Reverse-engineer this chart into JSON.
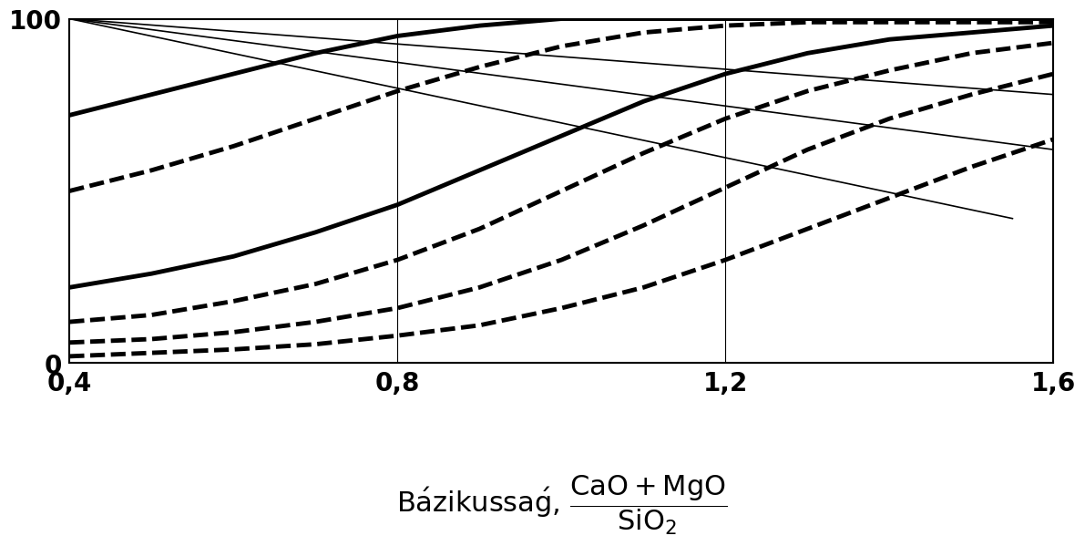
{
  "xlim": [
    0.4,
    1.6
  ],
  "ylim": [
    0,
    100
  ],
  "xticks": [
    0.4,
    0.8,
    1.2,
    1.6
  ],
  "xtick_labels": [
    "0,4",
    "0,8",
    "1,2",
    "1,6"
  ],
  "yticks": [
    0,
    100
  ],
  "ytick_labels": [
    "0",
    "100"
  ],
  "vlines": [
    0.8,
    1.2
  ],
  "background_color": "#ffffff",
  "thick_solid_curves": [
    {
      "x": [
        0.4,
        0.5,
        0.6,
        0.7,
        0.8,
        0.9,
        1.0,
        1.1,
        1.2,
        1.3,
        1.4,
        1.5,
        1.6
      ],
      "y": [
        72,
        78,
        84,
        90,
        95,
        98,
        100,
        100,
        100,
        100,
        100,
        100,
        100
      ],
      "lw": 3.5
    },
    {
      "x": [
        0.4,
        0.5,
        0.6,
        0.7,
        0.8,
        0.9,
        1.0,
        1.1,
        1.2,
        1.3,
        1.4,
        1.5,
        1.6
      ],
      "y": [
        22,
        26,
        31,
        38,
        46,
        56,
        66,
        76,
        84,
        90,
        94,
        96,
        98
      ],
      "lw": 3.5
    }
  ],
  "thick_dashed_curves": [
    {
      "x": [
        0.4,
        0.5,
        0.6,
        0.7,
        0.8,
        0.9,
        1.0,
        1.1,
        1.2,
        1.3,
        1.4,
        1.5,
        1.6
      ],
      "y": [
        50,
        56,
        63,
        71,
        79,
        86,
        92,
        96,
        98,
        99,
        99,
        99,
        99
      ],
      "lw": 3.5,
      "dash": [
        10,
        4
      ]
    },
    {
      "x": [
        0.4,
        0.5,
        0.6,
        0.7,
        0.8,
        0.9,
        1.0,
        1.1,
        1.2,
        1.3,
        1.4,
        1.5,
        1.6
      ],
      "y": [
        12,
        14,
        18,
        23,
        30,
        39,
        50,
        61,
        71,
        79,
        85,
        90,
        93
      ],
      "lw": 3.5,
      "dash": [
        10,
        4
      ]
    },
    {
      "x": [
        0.4,
        0.5,
        0.6,
        0.7,
        0.8,
        0.9,
        1.0,
        1.1,
        1.2,
        1.3,
        1.4,
        1.5,
        1.6
      ],
      "y": [
        6,
        7,
        9,
        12,
        16,
        22,
        30,
        40,
        51,
        62,
        71,
        78,
        84
      ],
      "lw": 3.5,
      "dash": [
        10,
        4
      ]
    },
    {
      "x": [
        0.4,
        0.5,
        0.6,
        0.7,
        0.8,
        0.9,
        1.0,
        1.1,
        1.2,
        1.3,
        1.4,
        1.5,
        1.6
      ],
      "y": [
        2,
        3,
        4,
        5.5,
        8,
        11,
        16,
        22,
        30,
        39,
        48,
        57,
        65
      ],
      "lw": 3.5,
      "dash": [
        10,
        4
      ]
    }
  ],
  "thin_straight_lines": [
    {
      "x": [
        0.4,
        1.55
      ],
      "y": [
        100,
        42
      ],
      "lw": 1.2
    },
    {
      "x": [
        0.4,
        1.6
      ],
      "y": [
        100,
        62
      ],
      "lw": 1.2
    },
    {
      "x": [
        0.4,
        1.6
      ],
      "y": [
        100,
        78
      ],
      "lw": 1.2
    }
  ]
}
